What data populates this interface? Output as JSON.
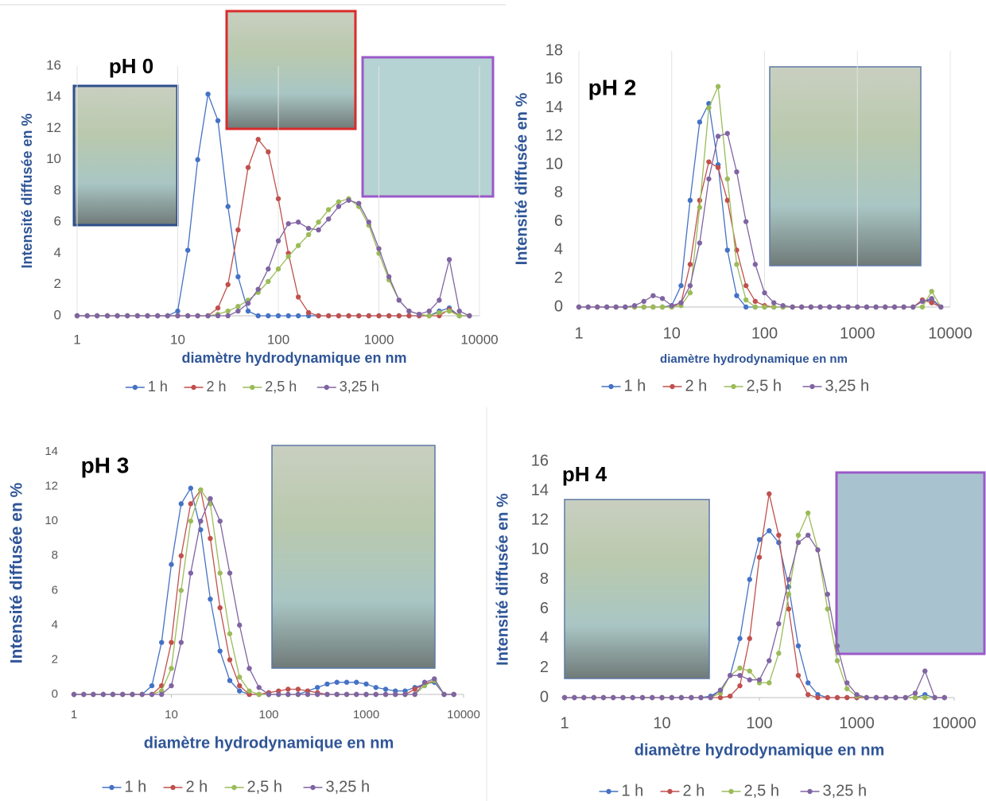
{
  "chart_data": [
    {
      "type": "line",
      "title": "pH 0",
      "x_label": "diamètre hydrodynamique en nm",
      "y_label": "Intensité diffusée en %",
      "x_scale": "log",
      "grid": true,
      "xlim": [
        1,
        10000
      ],
      "xticks": [
        1,
        10,
        100,
        1000,
        10000
      ],
      "ylim": [
        0,
        16
      ],
      "yticks": [
        0,
        2,
        4,
        6,
        8,
        10,
        12,
        14,
        16
      ],
      "x": [
        1,
        1.26,
        1.58,
        2,
        2.51,
        3.16,
        3.98,
        5.01,
        6.31,
        7.94,
        10,
        12.6,
        15.8,
        20,
        25.1,
        31.6,
        39.8,
        50.1,
        63.1,
        79.4,
        100,
        126,
        158,
        200,
        251,
        316,
        398,
        501,
        631,
        794,
        1000,
        1259,
        1585,
        1995,
        2512,
        3162,
        3981,
        5012,
        6310,
        7943
      ],
      "series": [
        {
          "name": "1 h",
          "color": "#4472c4",
          "values": [
            0,
            0,
            0,
            0,
            0,
            0,
            0,
            0,
            0,
            0,
            0.3,
            4.2,
            10,
            14.2,
            12.5,
            7,
            2.5,
            0.3,
            0,
            0,
            0,
            0,
            0,
            0,
            0,
            0,
            0,
            0,
            0,
            0,
            0,
            0,
            0,
            0,
            0,
            0,
            0.3,
            0.5,
            0,
            0
          ]
        },
        {
          "name": "2 h",
          "color": "#c0504d",
          "values": [
            0,
            0,
            0,
            0,
            0,
            0,
            0,
            0,
            0,
            0,
            0,
            0,
            0,
            0,
            0.5,
            2,
            5.5,
            9.5,
            11.3,
            10.5,
            7.5,
            4,
            1.2,
            0.2,
            0,
            0,
            0,
            0,
            0,
            0,
            0,
            0,
            0,
            0,
            0,
            0,
            0,
            0.4,
            0,
            0
          ]
        },
        {
          "name": "2,5 h",
          "color": "#9bbb59",
          "values": [
            0,
            0,
            0,
            0,
            0,
            0,
            0,
            0,
            0,
            0,
            0,
            0,
            0,
            0,
            0.1,
            0.3,
            0.6,
            1,
            1.5,
            2.2,
            3,
            3.8,
            4.5,
            5.2,
            6,
            6.8,
            7.3,
            7.5,
            7,
            5.8,
            4,
            2.3,
            1,
            0.3,
            0.1,
            0,
            0.2,
            0.3,
            0,
            0
          ]
        },
        {
          "name": "3,25 h",
          "color": "#8064a2",
          "values": [
            0,
            0,
            0,
            0,
            0,
            0,
            0,
            0,
            0,
            0,
            0,
            0,
            0,
            0,
            0,
            0,
            0.3,
            0.8,
            1.7,
            3,
            4.8,
            5.9,
            6,
            5.6,
            5.5,
            6.2,
            7,
            7.4,
            7.2,
            6,
            4.3,
            2.5,
            1,
            0.3,
            0.1,
            0.3,
            1,
            3.6,
            0.3,
            0
          ]
        }
      ]
    },
    {
      "type": "line",
      "title": "pH 2",
      "x_label": "diamètre hydrodynamique  en nm",
      "y_label": "Intensité diffusée en %",
      "x_scale": "log",
      "grid": true,
      "xlim": [
        1,
        10000
      ],
      "xticks": [
        1,
        10,
        100,
        1000,
        10000
      ],
      "ylim": [
        0,
        18
      ],
      "yticks": [
        0,
        2,
        4,
        6,
        8,
        10,
        12,
        14,
        16,
        18
      ],
      "x": [
        1,
        1.26,
        1.58,
        2,
        2.51,
        3.16,
        3.98,
        5.01,
        6.31,
        7.94,
        10,
        12.6,
        15.8,
        20,
        25.1,
        31.6,
        39.8,
        50.1,
        63.1,
        79.4,
        100,
        126,
        158,
        200,
        251,
        316,
        398,
        501,
        631,
        794,
        1000,
        1259,
        1585,
        1995,
        2512,
        3162,
        3981,
        5012,
        6310,
        7943
      ],
      "series": [
        {
          "name": "1 h",
          "color": "#4472c4",
          "values": [
            0,
            0,
            0,
            0,
            0,
            0,
            0,
            0,
            0,
            0,
            0.1,
            1.5,
            7.5,
            13,
            14.3,
            10,
            4,
            0.8,
            0,
            0,
            0,
            0,
            0,
            0,
            0,
            0,
            0,
            0,
            0,
            0,
            0,
            0,
            0,
            0,
            0,
            0,
            0,
            0.4,
            0.5,
            0
          ]
        },
        {
          "name": "2 h",
          "color": "#c0504d",
          "values": [
            0,
            0,
            0,
            0,
            0,
            0,
            0,
            0,
            0,
            0,
            0,
            0.3,
            3,
            7.5,
            10.2,
            9.8,
            7.5,
            4,
            1.5,
            0.4,
            0.1,
            0,
            0,
            0,
            0,
            0,
            0,
            0,
            0,
            0,
            0,
            0,
            0,
            0,
            0,
            0,
            0,
            0.5,
            0.3,
            0
          ]
        },
        {
          "name": "2,5 h",
          "color": "#9bbb59",
          "values": [
            0,
            0,
            0,
            0,
            0,
            0,
            0,
            0,
            0,
            0,
            0,
            0.1,
            1,
            7,
            14,
            15.5,
            9,
            3,
            0.5,
            0,
            0,
            0,
            0,
            0,
            0,
            0,
            0,
            0,
            0,
            0,
            0,
            0,
            0,
            0,
            0,
            0,
            0,
            0,
            1.1,
            0
          ]
        },
        {
          "name": "3,25 h",
          "color": "#8064a2",
          "values": [
            0,
            0,
            0,
            0,
            0,
            0,
            0.1,
            0.4,
            0.8,
            0.6,
            0.1,
            0.3,
            1.5,
            4.5,
            9,
            12,
            12.2,
            9.5,
            6,
            3,
            1,
            0.3,
            0.1,
            0,
            0,
            0,
            0,
            0,
            0,
            0,
            0,
            0,
            0,
            0,
            0,
            0,
            0,
            0.4,
            0.6,
            0
          ]
        }
      ]
    },
    {
      "type": "line",
      "title": "pH 3",
      "x_label": "diamètre hydrodynamique en nm",
      "y_label": "Intensité diffusée en %",
      "x_scale": "log",
      "grid": false,
      "xlim": [
        1,
        10000
      ],
      "xticks": [
        1,
        10,
        100,
        1000,
        10000
      ],
      "ylim": [
        0,
        14
      ],
      "yticks": [
        0,
        2,
        4,
        6,
        8,
        10,
        12,
        14
      ],
      "x": [
        1,
        1.26,
        1.58,
        2,
        2.51,
        3.16,
        3.98,
        5.01,
        6.31,
        7.94,
        10,
        12.6,
        15.8,
        20,
        25.1,
        31.6,
        39.8,
        50.1,
        63.1,
        79.4,
        100,
        126,
        158,
        200,
        251,
        316,
        398,
        501,
        631,
        794,
        1000,
        1259,
        1585,
        1995,
        2512,
        3162,
        3981,
        5012,
        6310,
        7943
      ],
      "series": [
        {
          "name": "1 h",
          "color": "#4472c4",
          "values": [
            0,
            0,
            0,
            0,
            0,
            0,
            0,
            0,
            0.5,
            3,
            7.5,
            11,
            11.9,
            9.5,
            5.5,
            2.5,
            0.8,
            0.2,
            0,
            0,
            0,
            0,
            0,
            0,
            0.2,
            0.4,
            0.6,
            0.7,
            0.7,
            0.7,
            0.6,
            0.4,
            0.3,
            0.2,
            0.2,
            0.4,
            0.6,
            0.7,
            0,
            0
          ]
        },
        {
          "name": "2 h",
          "color": "#c0504d",
          "values": [
            0,
            0,
            0,
            0,
            0,
            0,
            0,
            0,
            0,
            0.5,
            3,
            8,
            11,
            11.8,
            9,
            5,
            2,
            0.5,
            0,
            0,
            0.1,
            0.2,
            0.3,
            0.3,
            0.2,
            0.1,
            0,
            0,
            0,
            0,
            0,
            0,
            0,
            0,
            0,
            0.3,
            0.6,
            0.8,
            0,
            0
          ]
        },
        {
          "name": "2,5 h",
          "color": "#9bbb59",
          "values": [
            0,
            0,
            0,
            0,
            0,
            0,
            0,
            0,
            0,
            0.2,
            1.5,
            6,
            10,
            11.8,
            11,
            7,
            3.5,
            1,
            0.2,
            0,
            0,
            0,
            0,
            0,
            0,
            0,
            0,
            0,
            0,
            0,
            0,
            0,
            0,
            0,
            0,
            0,
            0.5,
            0.8,
            0,
            0
          ]
        },
        {
          "name": "3,25 h",
          "color": "#8064a2",
          "values": [
            0,
            0,
            0,
            0,
            0,
            0,
            0,
            0,
            0,
            0,
            0.5,
            3,
            7,
            10,
            11.3,
            10,
            7,
            4,
            1.5,
            0.4,
            0,
            0,
            0,
            0,
            0,
            0,
            0,
            0,
            0,
            0,
            0,
            0,
            0,
            0,
            0,
            0,
            0.7,
            0.9,
            0,
            0
          ]
        }
      ]
    },
    {
      "type": "line",
      "title": "pH 4",
      "x_label": "diamètre hydrodynamique en nm",
      "y_label": "Intensité diffusée en %",
      "x_scale": "log",
      "grid": false,
      "xlim": [
        1,
        10000
      ],
      "xticks": [
        1,
        10,
        100,
        1000,
        10000
      ],
      "ylim": [
        0,
        16
      ],
      "yticks": [
        0,
        2,
        4,
        6,
        8,
        10,
        12,
        14,
        16
      ],
      "x": [
        1,
        1.26,
        1.58,
        2,
        2.51,
        3.16,
        3.98,
        5.01,
        6.31,
        7.94,
        10,
        12.6,
        15.8,
        20,
        25.1,
        31.6,
        39.8,
        50.1,
        63.1,
        79.4,
        100,
        126,
        158,
        200,
        251,
        316,
        398,
        501,
        631,
        794,
        1000,
        1259,
        1585,
        1995,
        2512,
        3162,
        3981,
        5012,
        6310,
        7943
      ],
      "series": [
        {
          "name": "1 h",
          "color": "#4472c4",
          "values": [
            0,
            0,
            0,
            0,
            0,
            0,
            0,
            0,
            0,
            0,
            0,
            0,
            0,
            0,
            0,
            0.1,
            0.5,
            1.5,
            4,
            8,
            10.7,
            11.3,
            10.5,
            7.5,
            3.5,
            1,
            0.2,
            0,
            0,
            0,
            0,
            0,
            0,
            0,
            0,
            0,
            0,
            0.2,
            0,
            0
          ]
        },
        {
          "name": "2 h",
          "color": "#c0504d",
          "values": [
            0,
            0,
            0,
            0,
            0,
            0,
            0,
            0,
            0,
            0,
            0,
            0,
            0,
            0,
            0,
            0,
            0,
            0.1,
            0.8,
            4,
            9.5,
            13.8,
            11,
            6,
            1.5,
            0.2,
            0,
            0,
            0,
            0,
            0,
            0,
            0,
            0,
            0,
            0,
            0,
            0,
            0,
            0
          ]
        },
        {
          "name": "2,5 h",
          "color": "#9bbb59",
          "values": [
            0,
            0,
            0,
            0,
            0,
            0,
            0,
            0,
            0,
            0,
            0,
            0,
            0,
            0,
            0,
            0,
            0.3,
            1.5,
            2,
            1.8,
            1,
            1,
            3,
            7,
            11,
            12.5,
            10,
            6,
            2.5,
            0.6,
            0.1,
            0,
            0,
            0,
            0,
            0,
            0,
            0,
            0,
            0
          ]
        },
        {
          "name": "3,25 h",
          "color": "#8064a2",
          "values": [
            0,
            0,
            0,
            0,
            0,
            0,
            0,
            0,
            0,
            0,
            0,
            0,
            0,
            0,
            0,
            0,
            0.5,
            1.5,
            1.5,
            1.2,
            1.2,
            2.5,
            5,
            8,
            10.5,
            11,
            10,
            7,
            3.5,
            1,
            0.2,
            0,
            0,
            0,
            0,
            0,
            0.3,
            1.8,
            0,
            0
          ]
        }
      ]
    }
  ]
}
